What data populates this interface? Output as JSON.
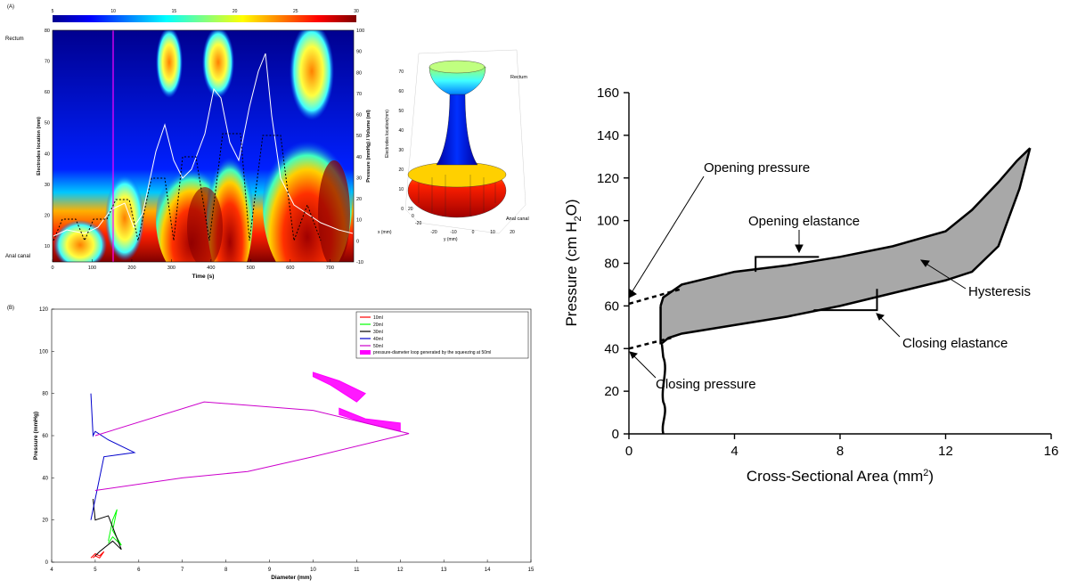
{
  "panelA": {
    "label": "(A)",
    "colorbar_ticks": [
      "5",
      "10",
      "15",
      "20",
      "25",
      "30"
    ],
    "colorbar_colors": [
      "#00008f",
      "#0000ff",
      "#0080ff",
      "#00ffff",
      "#80ff80",
      "#ffff00",
      "#ff8000",
      "#ff0000",
      "#800000"
    ],
    "left_top_label": "Rectum",
    "left_bottom_label": "Anal canal",
    "ylabel_left": "Electrodes location (mm)",
    "ylabel_right": "Pressure (mmHg) / Volume (ml)",
    "xlabel": "Time (s)",
    "x_ticks": [
      "0",
      "100",
      "200",
      "300",
      "400",
      "500",
      "600",
      "700"
    ],
    "y_ticks_left": [
      "10",
      "20",
      "30",
      "40",
      "50",
      "60",
      "70",
      "80"
    ],
    "y_ticks_right": [
      "-10",
      "0",
      "10",
      "20",
      "30",
      "40",
      "50",
      "60",
      "70",
      "80",
      "90",
      "100"
    ],
    "inset": {
      "zlabel": "Electrodes location(mm)",
      "top_label": "Rectum",
      "bottom_label": "Anal canal",
      "xlabel": "x (mm)",
      "ylabel": "y (mm)",
      "z_ticks": [
        "0",
        "10",
        "20",
        "30",
        "40",
        "50",
        "60",
        "70"
      ],
      "y_ticks": [
        "-20",
        "-10",
        "0",
        "10",
        "20"
      ],
      "x_ticks": [
        "20",
        "0",
        "-20"
      ]
    }
  },
  "panelB": {
    "label": "(B)",
    "chart_data": {
      "type": "line",
      "xlabel": "Diameter (mm)",
      "ylabel": "Pressure (mmHg)",
      "xlim": [
        4,
        15
      ],
      "ylim": [
        0,
        120
      ],
      "x_ticks": [
        "4",
        "5",
        "6",
        "7",
        "8",
        "9",
        "10",
        "11",
        "12",
        "13",
        "14",
        "15"
      ],
      "y_ticks": [
        "0",
        "20",
        "40",
        "60",
        "80",
        "100",
        "120"
      ],
      "legend_position": "top-right",
      "series": [
        {
          "name": "10ml",
          "color": "#ff0000",
          "x": [
            4.9,
            5.0,
            5.1,
            5.2,
            5.1,
            5.0,
            4.95
          ],
          "y": [
            2,
            4,
            3,
            5,
            2,
            3,
            2
          ]
        },
        {
          "name": "20ml",
          "color": "#00ff00",
          "x": [
            5.3,
            5.4,
            5.5,
            5.4,
            5.6,
            5.4,
            5.3
          ],
          "y": [
            10,
            20,
            25,
            15,
            8,
            12,
            9
          ]
        },
        {
          "name": "30ml",
          "color": "#000000",
          "x": [
            4.95,
            5.0,
            5.3,
            5.6,
            5.4,
            5.1,
            5.0
          ],
          "y": [
            30,
            20,
            22,
            6,
            10,
            5,
            3
          ]
        },
        {
          "name": "40ml",
          "color": "#0000cc",
          "x": [
            4.9,
            4.95,
            5.0,
            5.3,
            5.9,
            5.2,
            4.9
          ],
          "y": [
            80,
            60,
            62,
            58,
            52,
            50,
            20
          ]
        },
        {
          "name": "50ml",
          "color": "#cc00cc",
          "x": [
            5.0,
            7.0,
            8.5,
            10.0,
            12.2,
            10.0,
            7.5,
            5.0
          ],
          "y": [
            34,
            40,
            43,
            50,
            61,
            72,
            76,
            60
          ]
        }
      ],
      "area_series": {
        "name": "pressure-diameter loop generated by the squeezing at 50ml",
        "color": "#ff00ff"
      }
    }
  },
  "panelC": {
    "chart_data": {
      "type": "area",
      "xlabel_prefix": "Cross-Sectional Area (mm",
      "xlabel_sup": "2",
      "xlabel_suffix": ")",
      "ylabel_prefix": "Pressure (cm H",
      "ylabel_sub": "2",
      "ylabel_suffix": "O)",
      "xlim": [
        0,
        16
      ],
      "ylim": [
        0,
        160
      ],
      "x_ticks": [
        "0",
        "4",
        "8",
        "12",
        "16"
      ],
      "y_ticks": [
        "0",
        "20",
        "40",
        "60",
        "80",
        "100",
        "120",
        "140",
        "160"
      ],
      "upper_curve": {
        "x": [
          1.2,
          1.3,
          2,
          4,
          6,
          8,
          10,
          12,
          13,
          14,
          14.7,
          15.2
        ],
        "y": [
          60,
          64,
          70,
          76,
          79,
          83,
          88,
          95,
          105,
          118,
          128,
          134
        ]
      },
      "lower_curve": {
        "x": [
          1.2,
          1.5,
          2,
          4,
          6,
          8,
          10,
          12,
          13,
          14,
          14.8,
          15.2
        ],
        "y": [
          42,
          45,
          47,
          51,
          55,
          60,
          66,
          72,
          76,
          88,
          115,
          134
        ]
      },
      "opening_extrapolation": {
        "x": [
          0,
          2
        ],
        "y": [
          61,
          68
        ]
      },
      "closing_extrapolation": {
        "x": [
          0,
          1.6
        ],
        "y": [
          40,
          45
        ]
      },
      "opening_elastance_box": {
        "x": [
          4.8,
          7.2
        ],
        "y": [
          76,
          83
        ]
      },
      "closing_elastance_box": {
        "x": [
          7.0,
          9.4
        ],
        "y": [
          58,
          68
        ]
      },
      "annotations": {
        "opening_pressure": "Opening pressure",
        "opening_elastance": "Opening elastance",
        "hysteresis": "Hysteresis",
        "closing_elastance": "Closing elastance",
        "closing_pressure": "Closing pressure"
      }
    }
  }
}
